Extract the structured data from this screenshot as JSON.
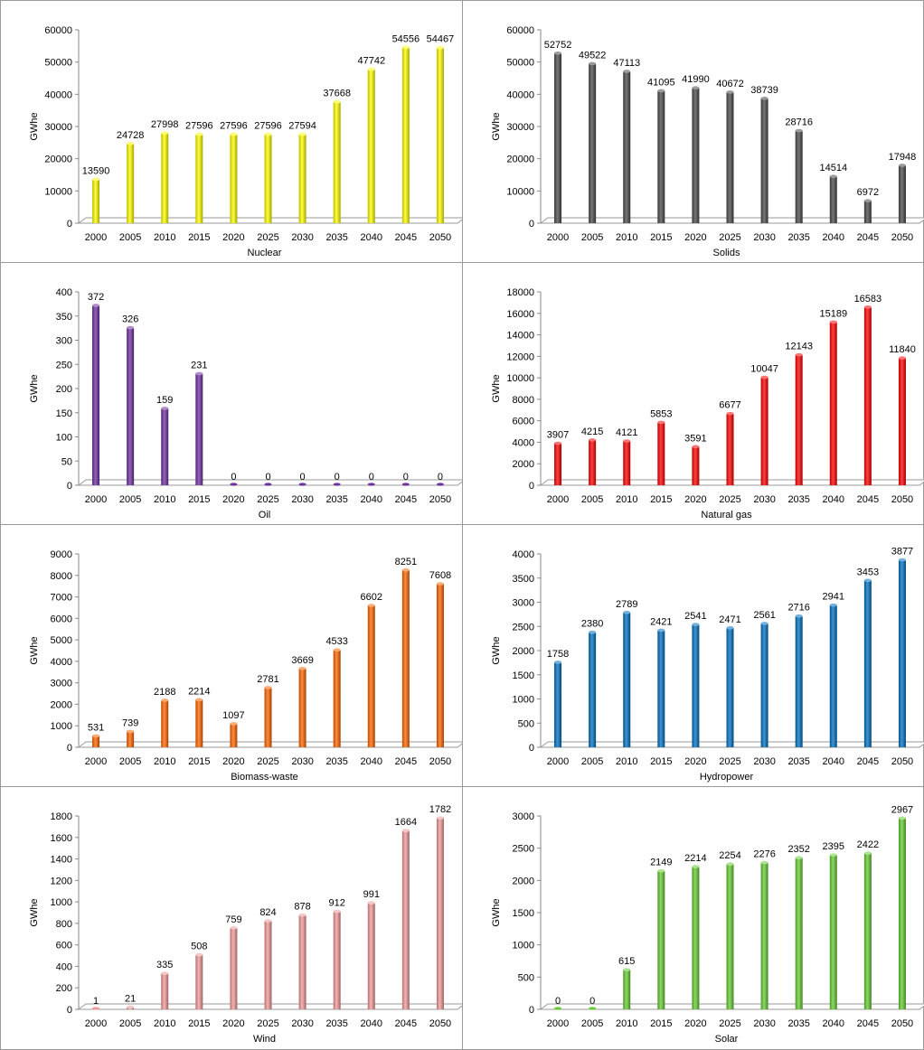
{
  "chart_data": [
    {
      "type": "bar",
      "xlabel": "Nuclear",
      "ylabel": "GWhe",
      "ylim": [
        0,
        60000
      ],
      "ytick_step": 10000,
      "color": "#ffff00",
      "categories": [
        "2000",
        "2005",
        "2010",
        "2015",
        "2020",
        "2025",
        "2030",
        "2035",
        "2040",
        "2045",
        "2050"
      ],
      "values": [
        13590,
        24728,
        27998,
        27596,
        27596,
        27596,
        27594,
        37668,
        47742,
        54556,
        54467
      ]
    },
    {
      "type": "bar",
      "xlabel": "Solids",
      "ylabel": "GWhe",
      "ylim": [
        0,
        60000
      ],
      "ytick_step": 10000,
      "color": "#4a4a4a",
      "categories": [
        "2000",
        "2005",
        "2010",
        "2015",
        "2020",
        "2025",
        "2030",
        "2035",
        "2040",
        "2045",
        "2050"
      ],
      "values": [
        52752,
        49522,
        47113,
        41095,
        41990,
        40672,
        38739,
        28716,
        14514,
        6972,
        17948
      ]
    },
    {
      "type": "bar",
      "xlabel": "Oil",
      "ylabel": "GWhe",
      "ylim": [
        0,
        400
      ],
      "ytick_step": 50,
      "color": "#7030a0",
      "categories": [
        "2000",
        "2005",
        "2010",
        "2015",
        "2020",
        "2025",
        "2030",
        "2035",
        "2040",
        "2045",
        "2050"
      ],
      "values": [
        372,
        326,
        159,
        231,
        0,
        0,
        0,
        0,
        0,
        0,
        0
      ]
    },
    {
      "type": "bar",
      "xlabel": "Natural gas",
      "ylabel": "GWhe",
      "ylim": [
        0,
        18000
      ],
      "ytick_step": 2000,
      "color": "#ff0000",
      "categories": [
        "2000",
        "2005",
        "2010",
        "2015",
        "2020",
        "2025",
        "2030",
        "2035",
        "2040",
        "2045",
        "2050"
      ],
      "values": [
        3907,
        4215,
        4121,
        5853,
        3591,
        6677,
        10047,
        12143,
        15189,
        16583,
        11840
      ]
    },
    {
      "type": "bar",
      "xlabel": "Biomass-waste",
      "ylabel": "GWhe",
      "ylim": [
        0,
        9000
      ],
      "ytick_step": 1000,
      "color": "#ff6600",
      "categories": [
        "2000",
        "2005",
        "2010",
        "2015",
        "2020",
        "2025",
        "2030",
        "2035",
        "2040",
        "2045",
        "2050"
      ],
      "values": [
        531,
        739,
        2188,
        2214,
        1097,
        2781,
        3669,
        4533,
        6602,
        8251,
        7608
      ]
    },
    {
      "type": "bar",
      "xlabel": "Hydropower",
      "ylabel": "GWhe",
      "ylim": [
        0,
        4000
      ],
      "ytick_step": 500,
      "color": "#0070c0",
      "categories": [
        "2000",
        "2005",
        "2010",
        "2015",
        "2020",
        "2025",
        "2030",
        "2035",
        "2040",
        "2045",
        "2050"
      ],
      "values": [
        1758,
        2380,
        2789,
        2421,
        2541,
        2471,
        2561,
        2716,
        2941,
        3453,
        3877
      ]
    },
    {
      "type": "bar",
      "xlabel": "Wind",
      "ylabel": "GWhe",
      "ylim": [
        0,
        1800
      ],
      "ytick_step": 200,
      "color": "#f19999",
      "categories": [
        "2000",
        "2005",
        "2010",
        "2015",
        "2020",
        "2025",
        "2030",
        "2035",
        "2040",
        "2045",
        "2050"
      ],
      "values": [
        1,
        21,
        335,
        508,
        759,
        824,
        878,
        912,
        991,
        1664,
        1782
      ]
    },
    {
      "type": "bar",
      "xlabel": "Solar",
      "ylabel": "GWhe",
      "ylim": [
        0,
        3000
      ],
      "ytick_step": 500,
      "color": "#66cc33",
      "categories": [
        "2000",
        "2005",
        "2010",
        "2015",
        "2020",
        "2025",
        "2030",
        "2035",
        "2040",
        "2045",
        "2050"
      ],
      "values": [
        0,
        0,
        615,
        2149,
        2214,
        2254,
        2276,
        2352,
        2395,
        2422,
        2967
      ]
    }
  ]
}
